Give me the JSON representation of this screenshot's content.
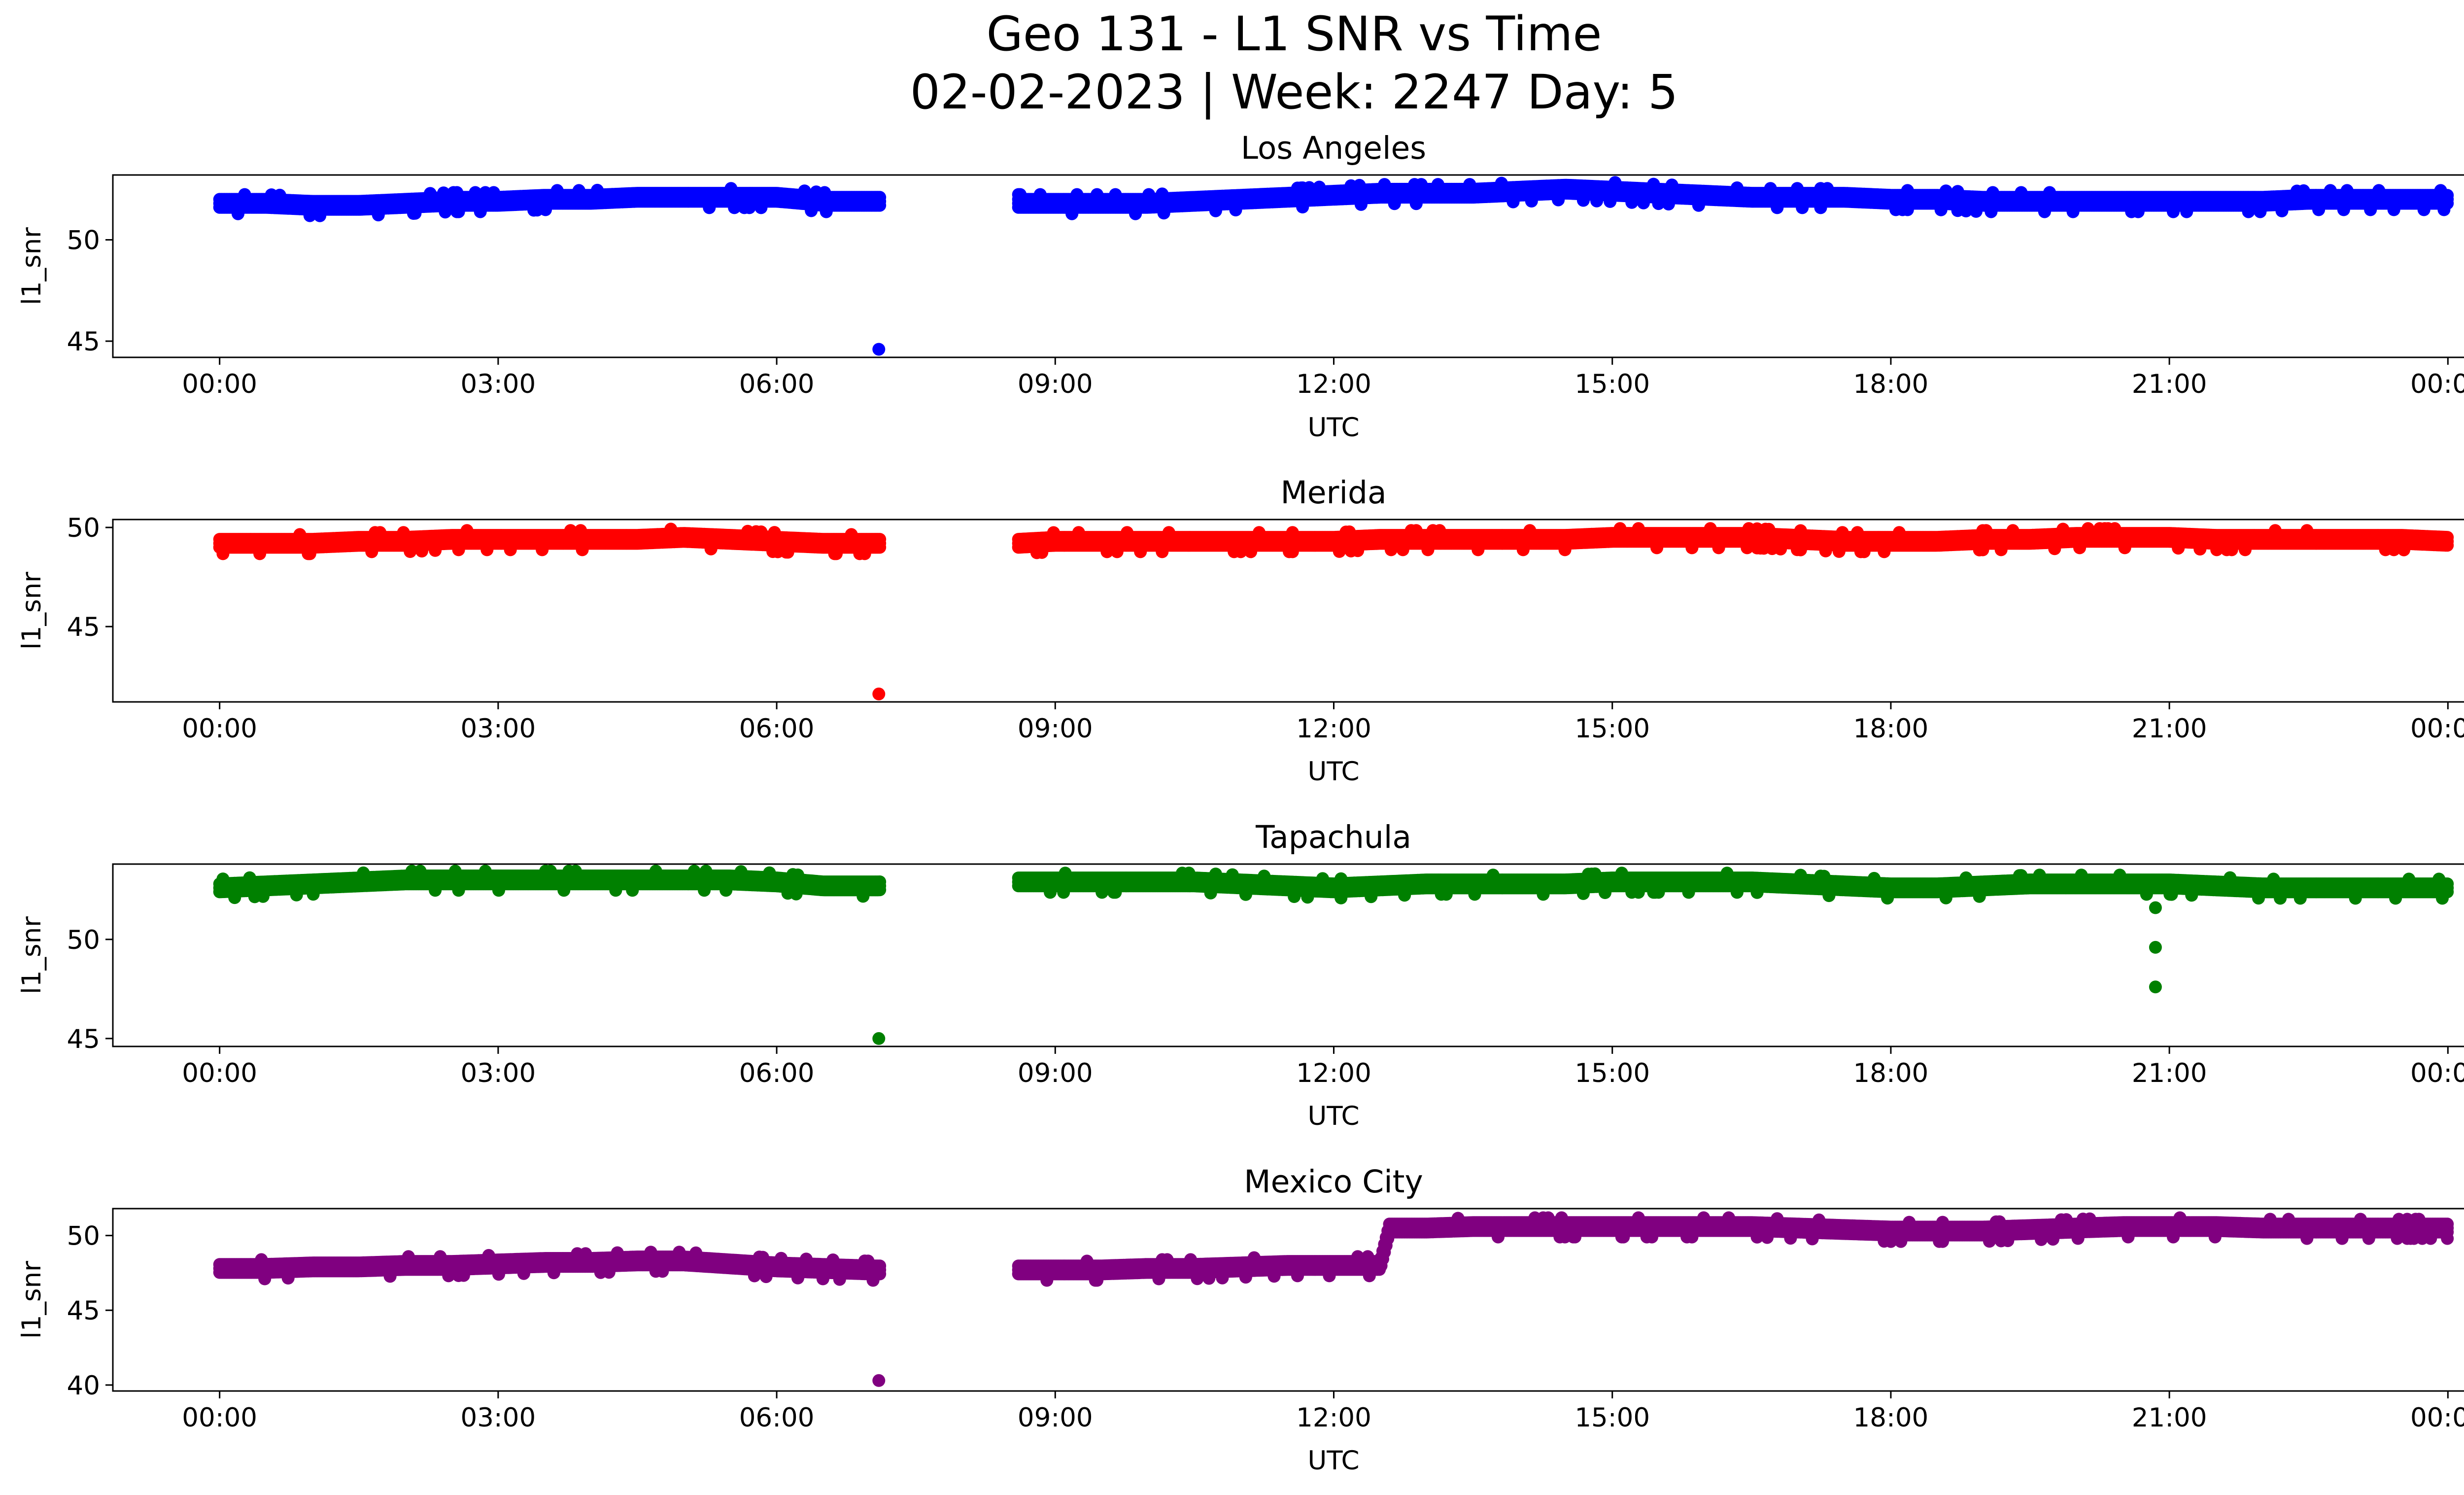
{
  "figure": {
    "title_line1": "Geo 131 - L1 SNR vs Time",
    "title_line2": "02-02-2023 | Week: 2247 Day: 5"
  },
  "chart_data": [
    {
      "type": "scatter",
      "title": "Los Angeles",
      "xlabel": "UTC",
      "ylabel": "l1_snr",
      "color": "#0000ff",
      "x_ticks": [
        "00:00",
        "03:00",
        "06:00",
        "09:00",
        "12:00",
        "15:00",
        "18:00",
        "21:00",
        "00:00"
      ],
      "x_tick_hours": [
        0,
        3,
        6,
        9,
        12,
        15,
        18,
        21,
        24
      ],
      "y_ticks": [
        45,
        50
      ],
      "xlim_hours": [
        -1.15,
        25.15
      ],
      "ylim": [
        44.2,
        53.2
      ],
      "gap_hours": [
        7.1,
        8.6
      ],
      "series": [
        {
          "x_hours": [
            0.0,
            0.5,
            1.0,
            1.5,
            2.0,
            2.5,
            3.0,
            3.5,
            4.0,
            4.5,
            5.0,
            5.5,
            6.0,
            6.5,
            7.0,
            7.1,
            8.6,
            9.0,
            9.5,
            10.0,
            10.5,
            11.0,
            11.5,
            12.0,
            12.5,
            13.0,
            13.5,
            14.0,
            14.5,
            15.0,
            15.5,
            16.0,
            16.5,
            17.0,
            17.5,
            18.0,
            18.5,
            19.0,
            19.5,
            20.0,
            20.5,
            21.0,
            21.5,
            22.0,
            22.5,
            23.0,
            23.5,
            24.0
          ],
          "y": [
            51.8,
            51.8,
            51.7,
            51.7,
            51.8,
            51.9,
            51.9,
            52.0,
            52.0,
            52.1,
            52.1,
            52.1,
            52.1,
            51.9,
            51.9,
            51.9,
            51.8,
            51.8,
            51.8,
            51.8,
            51.9,
            52.0,
            52.1,
            52.2,
            52.3,
            52.3,
            52.3,
            52.4,
            52.5,
            52.4,
            52.3,
            52.2,
            52.1,
            52.1,
            52.1,
            52.0,
            52.0,
            51.9,
            51.9,
            51.9,
            51.9,
            51.9,
            51.9,
            51.9,
            52.0,
            52.0,
            52.0,
            52.0
          ]
        }
      ],
      "outliers": [
        {
          "x_hour": 7.1,
          "y": 44.6
        }
      ]
    },
    {
      "type": "scatter",
      "title": "Merida",
      "xlabel": "UTC",
      "ylabel": "l1_snr",
      "color": "#ff0000",
      "x_ticks": [
        "00:00",
        "03:00",
        "06:00",
        "09:00",
        "12:00",
        "15:00",
        "18:00",
        "21:00",
        "00:00"
      ],
      "x_tick_hours": [
        0,
        3,
        6,
        9,
        12,
        15,
        18,
        21,
        24
      ],
      "y_ticks": [
        45,
        50
      ],
      "xlim_hours": [
        -1.15,
        25.15
      ],
      "ylim": [
        41.2,
        50.4
      ],
      "gap_hours": [
        7.1,
        8.6
      ],
      "series": [
        {
          "x_hours": [
            0.0,
            0.5,
            1.0,
            1.5,
            2.0,
            2.5,
            3.0,
            3.5,
            4.0,
            4.5,
            5.0,
            5.5,
            6.0,
            6.5,
            7.0,
            7.1,
            8.6,
            9.0,
            9.5,
            10.0,
            10.5,
            11.0,
            11.5,
            12.0,
            12.5,
            13.0,
            13.5,
            14.0,
            14.5,
            15.0,
            15.5,
            16.0,
            16.5,
            17.0,
            17.5,
            18.0,
            18.5,
            19.0,
            19.5,
            20.0,
            20.5,
            21.0,
            21.5,
            22.0,
            22.5,
            23.0,
            23.5,
            24.0
          ],
          "y": [
            49.2,
            49.2,
            49.2,
            49.3,
            49.3,
            49.4,
            49.4,
            49.4,
            49.4,
            49.4,
            49.5,
            49.4,
            49.3,
            49.2,
            49.2,
            49.2,
            49.2,
            49.3,
            49.3,
            49.3,
            49.3,
            49.3,
            49.3,
            49.3,
            49.4,
            49.4,
            49.4,
            49.4,
            49.4,
            49.5,
            49.5,
            49.5,
            49.5,
            49.4,
            49.3,
            49.3,
            49.3,
            49.4,
            49.4,
            49.5,
            49.5,
            49.5,
            49.4,
            49.4,
            49.4,
            49.4,
            49.4,
            49.3
          ]
        }
      ],
      "outliers": [
        {
          "x_hour": 7.1,
          "y": 41.6
        }
      ]
    },
    {
      "type": "scatter",
      "title": "Tapachula",
      "xlabel": "UTC",
      "ylabel": "l1_snr",
      "color": "#008000",
      "x_ticks": [
        "00:00",
        "03:00",
        "06:00",
        "09:00",
        "12:00",
        "15:00",
        "18:00",
        "21:00",
        "00:00"
      ],
      "x_tick_hours": [
        0,
        3,
        6,
        9,
        12,
        15,
        18,
        21,
        24
      ],
      "y_ticks": [
        45,
        50
      ],
      "xlim_hours": [
        -1.15,
        25.15
      ],
      "ylim": [
        44.6,
        53.8
      ],
      "gap_hours": [
        7.1,
        8.6
      ],
      "series": [
        {
          "x_hours": [
            0.0,
            0.5,
            1.0,
            1.5,
            2.0,
            2.5,
            3.0,
            3.5,
            4.0,
            4.5,
            5.0,
            5.5,
            6.0,
            6.5,
            7.0,
            7.1,
            8.6,
            9.0,
            9.5,
            10.0,
            10.5,
            11.0,
            11.5,
            12.0,
            12.5,
            13.0,
            13.5,
            14.0,
            14.5,
            15.0,
            15.5,
            16.0,
            16.5,
            17.0,
            17.5,
            18.0,
            18.5,
            19.0,
            19.5,
            20.0,
            20.5,
            21.0,
            21.5,
            22.0,
            22.5,
            23.0,
            23.5,
            24.0
          ],
          "y": [
            52.6,
            52.7,
            52.8,
            52.9,
            53.0,
            53.0,
            53.0,
            53.0,
            53.0,
            53.0,
            53.0,
            53.0,
            52.9,
            52.7,
            52.7,
            52.7,
            52.9,
            52.9,
            52.9,
            52.9,
            52.9,
            52.8,
            52.7,
            52.6,
            52.7,
            52.8,
            52.8,
            52.8,
            52.8,
            52.9,
            52.9,
            52.9,
            52.9,
            52.8,
            52.7,
            52.6,
            52.6,
            52.7,
            52.8,
            52.8,
            52.8,
            52.8,
            52.7,
            52.6,
            52.6,
            52.6,
            52.6,
            52.6
          ]
        }
      ],
      "outliers": [
        {
          "x_hour": 7.1,
          "y": 45.0
        },
        {
          "x_hour": 20.85,
          "y": 51.6
        },
        {
          "x_hour": 20.85,
          "y": 49.6
        },
        {
          "x_hour": 20.85,
          "y": 47.6
        }
      ]
    },
    {
      "type": "scatter",
      "title": "Mexico City",
      "xlabel": "UTC",
      "ylabel": "l1_snr",
      "color": "#800080",
      "x_ticks": [
        "00:00",
        "03:00",
        "06:00",
        "09:00",
        "12:00",
        "15:00",
        "18:00",
        "21:00",
        "00:00"
      ],
      "x_tick_hours": [
        0,
        3,
        6,
        9,
        12,
        15,
        18,
        21,
        24
      ],
      "y_ticks": [
        40,
        45,
        50
      ],
      "xlim_hours": [
        -1.15,
        25.15
      ],
      "ylim": [
        39.6,
        51.8
      ],
      "gap_hours": [
        7.1,
        8.6
      ],
      "series": [
        {
          "x_hours": [
            0.0,
            0.5,
            1.0,
            1.5,
            2.0,
            2.5,
            3.0,
            3.5,
            4.0,
            4.5,
            5.0,
            5.5,
            6.0,
            6.5,
            7.0,
            7.1,
            8.6,
            9.0,
            9.5,
            10.0,
            10.5,
            11.0,
            11.5,
            12.0,
            12.5,
            12.6,
            13.0,
            13.5,
            14.0,
            14.5,
            15.0,
            15.5,
            16.0,
            16.5,
            17.0,
            17.5,
            18.0,
            18.5,
            19.0,
            19.5,
            20.0,
            20.5,
            21.0,
            21.5,
            22.0,
            22.5,
            23.0,
            23.5,
            24.0
          ],
          "y": [
            47.8,
            47.8,
            47.9,
            47.9,
            48.0,
            48.0,
            48.1,
            48.2,
            48.2,
            48.3,
            48.3,
            48.1,
            47.9,
            47.8,
            47.7,
            47.7,
            47.7,
            47.7,
            47.7,
            47.8,
            47.8,
            47.9,
            48.0,
            48.0,
            48.0,
            50.5,
            50.5,
            50.6,
            50.6,
            50.6,
            50.6,
            50.6,
            50.6,
            50.6,
            50.5,
            50.4,
            50.3,
            50.3,
            50.3,
            50.4,
            50.5,
            50.6,
            50.6,
            50.6,
            50.5,
            50.5,
            50.5,
            50.5,
            50.5
          ]
        }
      ],
      "outliers": [
        {
          "x_hour": 7.1,
          "y": 40.3
        }
      ]
    }
  ]
}
